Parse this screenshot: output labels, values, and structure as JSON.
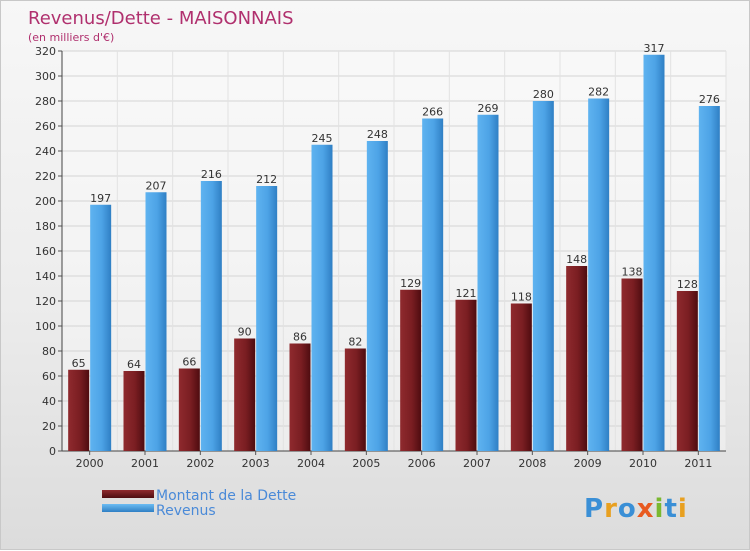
{
  "chart_data": {
    "type": "bar",
    "title": "Revenus/Dette - MAISONNAIS",
    "subtitle": "(en milliers d'€)",
    "categories": [
      "2000",
      "2001",
      "2002",
      "2003",
      "2004",
      "2005",
      "2006",
      "2007",
      "2008",
      "2009",
      "2010",
      "2011"
    ],
    "series": [
      {
        "name": "Montant de la Dette",
        "color": "#7a1e22",
        "values": [
          65,
          64,
          66,
          90,
          86,
          82,
          129,
          121,
          118,
          148,
          138,
          128
        ]
      },
      {
        "name": "Revenus",
        "color": "#4da3e6",
        "values": [
          197,
          207,
          216,
          212,
          245,
          248,
          266,
          269,
          280,
          282,
          317,
          276
        ]
      }
    ],
    "ylim": [
      0,
      320
    ],
    "yticks": [
      0,
      20,
      40,
      60,
      80,
      100,
      120,
      140,
      160,
      180,
      200,
      220,
      240,
      260,
      280,
      300,
      320
    ],
    "grid": true,
    "legend_position": "bottom-left",
    "title_color": "#b0306e"
  },
  "logo": {
    "text": "Proxiti"
  }
}
